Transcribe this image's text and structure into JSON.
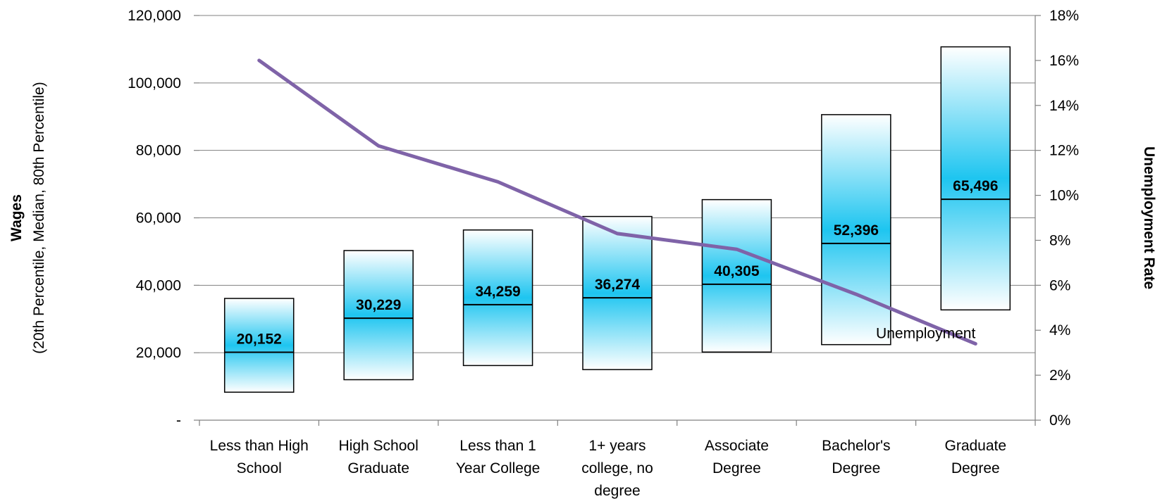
{
  "chart_data": {
    "type": "bar",
    "categories": [
      [
        "Less than High",
        "School"
      ],
      [
        "High School",
        "Graduate"
      ],
      [
        "Less than 1",
        "Year College"
      ],
      [
        "1+ years",
        "college, no",
        "degree"
      ],
      [
        "Associate",
        "Degree"
      ],
      [
        "Bachelor's",
        "Degree"
      ],
      [
        "Graduate",
        "Degree"
      ]
    ],
    "wages": {
      "p20": [
        8300,
        12000,
        16200,
        15000,
        20200,
        22400,
        32700
      ],
      "median": [
        20152,
        30229,
        34259,
        36274,
        40305,
        52396,
        65496
      ],
      "p80": [
        36100,
        50300,
        56400,
        60400,
        65400,
        90600,
        110700
      ],
      "median_labels": [
        "20,152",
        "30,229",
        "34,259",
        "36,274",
        "40,305",
        "52,396",
        "65,496"
      ]
    },
    "unemployment": {
      "name": "Unemployment",
      "values": [
        16.0,
        12.2,
        10.6,
        8.3,
        7.6,
        5.6,
        3.4
      ]
    },
    "y_left": {
      "title": "Wages",
      "subtitle": "(20th Percentile, Median, 80th Percentile)",
      "min": 0,
      "max": 120000,
      "ticks": [
        0,
        20000,
        40000,
        60000,
        80000,
        100000,
        120000
      ],
      "tick_labels": [
        "-",
        "20,000",
        "40,000",
        "60,000",
        "80,000",
        "100,000",
        "120,000"
      ]
    },
    "y_right": {
      "title": "Unemployment Rate",
      "min": 0,
      "max": 18,
      "ticks": [
        0,
        2,
        4,
        6,
        8,
        10,
        12,
        14,
        16,
        18
      ],
      "tick_labels": [
        "0%",
        "2%",
        "4%",
        "6%",
        "8%",
        "10%",
        "12%",
        "14%",
        "16%",
        "18%"
      ]
    },
    "grid": true,
    "colors": {
      "box_fill_center": "#1ec5f0",
      "box_fill_edge": "#ffffff",
      "box_stroke": "#000000",
      "line": "#7f63a8",
      "grid": "#808080"
    }
  }
}
